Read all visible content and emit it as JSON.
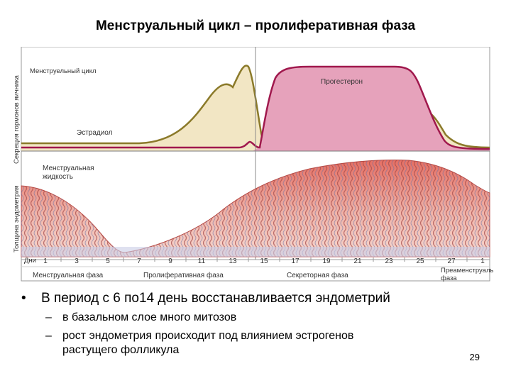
{
  "slide": {
    "title": "Менструальный цикл – пролиферативная фаза",
    "page_number": "29"
  },
  "figure": {
    "hormone_axis_label": "Секреция гормонов яичника",
    "endometrium_axis_label": "Толщина эндометрия",
    "cycle_label": "Менструельный цикл",
    "estradiol_label": "Эстрадиол",
    "progesterone_label": "Прогестерон",
    "menstrual_fluid_label_line1": "Менструальная",
    "menstrual_fluid_label_line2": "жидкость",
    "days_label": "Дни",
    "day_ticks": [
      "1",
      "3",
      "5",
      "7",
      "9",
      "11",
      "13",
      "15",
      "17",
      "19",
      "21",
      "23",
      "25",
      "27",
      "1"
    ],
    "phases": [
      "Менструальная фаза",
      "Пролиферативная фаза",
      "Секреторная фаза",
      "Преаменструальная фаза"
    ],
    "phase_last_line1": "Преаменструальная",
    "phase_last_line2": "фаза",
    "colors": {
      "estradiol_fill": "#f2e6c4",
      "estradiol_line": "#8b7a2a",
      "progesterone_fill": "#e6a2bb",
      "progesterone_line": "#a0184d",
      "endometrium": "#e27d74"
    }
  },
  "bullets": [
    {
      "text": "В период с 6 по14 день восстанавливается эндометрий",
      "sub": [
        {
          "lines": [
            "в базальном слое много митозов"
          ]
        },
        {
          "lines": [
            "рост эндометрия происходит под влиянием эстрогенов",
            "растущего фолликула"
          ]
        }
      ]
    }
  ]
}
